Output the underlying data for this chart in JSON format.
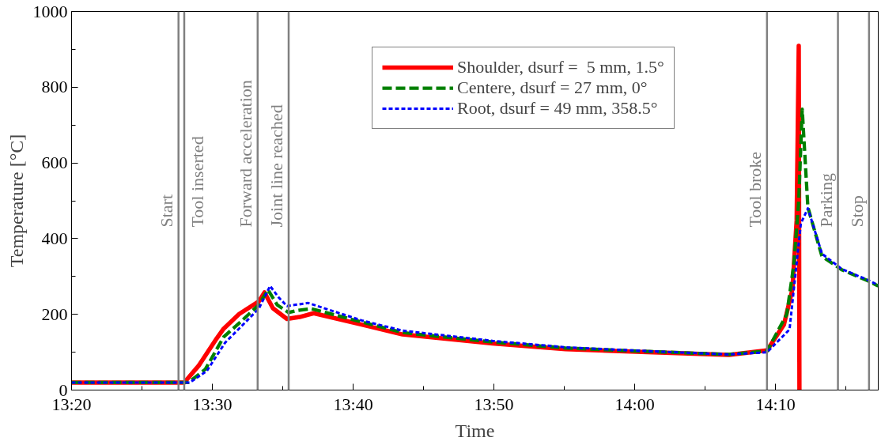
{
  "chart_data": {
    "type": "line",
    "xlabel": "Time",
    "ylabel": "Temperature [°C]",
    "xlim": [
      13.3333,
      14.2883
    ],
    "ylim": [
      0,
      1000
    ],
    "xticks": [
      {
        "value": 13.3333,
        "label": "13:20"
      },
      {
        "value": 13.4167,
        "label": null
      },
      {
        "value": 13.5,
        "label": "13:30"
      },
      {
        "value": 13.5833,
        "label": null
      },
      {
        "value": 13.6667,
        "label": "13:40"
      },
      {
        "value": 13.75,
        "label": null
      },
      {
        "value": 13.8333,
        "label": "13:50"
      },
      {
        "value": 13.9167,
        "label": null
      },
      {
        "value": 14.0,
        "label": "14:00"
      },
      {
        "value": 14.0833,
        "label": null
      },
      {
        "value": 14.1667,
        "label": "14:10"
      },
      {
        "value": 14.25,
        "label": null
      }
    ],
    "yticks": [
      0,
      {
        "value": 100,
        "label": null
      },
      200,
      {
        "value": 300,
        "label": null
      },
      400,
      {
        "value": 500,
        "label": null
      },
      600,
      {
        "value": 700,
        "label": null
      },
      800,
      {
        "value": 900,
        "label": null
      },
      1000
    ],
    "grid": false,
    "legend": "top right",
    "series": [
      {
        "name": "Shoulder, dsurf =  5 mm, 1.5°",
        "color": "#ff0000",
        "line_style": "solid",
        "x": [
          13.3333,
          13.4667,
          13.484,
          13.505,
          13.5133,
          13.5317,
          13.555,
          13.5617,
          13.5717,
          13.5883,
          13.6033,
          13.62,
          13.6767,
          13.725,
          13.8317,
          13.9183,
          14.015,
          14.1117,
          14.1567,
          14.1767,
          14.1867,
          14.1917,
          14.1942,
          14.195
        ],
        "values": [
          20,
          20,
          65,
          136,
          162,
          201,
          234,
          258,
          216,
          188,
          193,
          203,
          173,
          147,
          123,
          108,
          100,
          93,
          105,
          173,
          266,
          448,
          909,
          0
        ]
      },
      {
        "name": "Centere, dsurf = 27 mm, 0°",
        "color": "#008000",
        "line_style": "dashed",
        "x": [
          13.3333,
          13.4717,
          13.4917,
          13.5133,
          13.5333,
          13.555,
          13.5658,
          13.5767,
          13.59,
          13.6,
          13.6167,
          13.6767,
          13.725,
          13.8317,
          13.9183,
          14.015,
          14.1117,
          14.1567,
          14.18,
          14.1883,
          14.1942,
          14.1983,
          14.205,
          14.2217,
          14.245,
          14.2767,
          14.2883
        ],
        "values": [
          20,
          20,
          55,
          140,
          180,
          225,
          265,
          225,
          205,
          210,
          215,
          180,
          152,
          127,
          111,
          102,
          94,
          103,
          200,
          330,
          500,
          742,
          483,
          353,
          318,
          288,
          275
        ]
      },
      {
        "name": "Root, dsurf = 49 mm, 358.5°",
        "color": "#0000ff",
        "line_style": "dotted",
        "x": [
          13.3333,
          13.4733,
          13.4933,
          13.515,
          13.535,
          13.555,
          13.5683,
          13.5783,
          13.5883,
          13.6133,
          13.6767,
          13.725,
          13.8317,
          13.9183,
          14.015,
          14.1117,
          14.1567,
          14.1833,
          14.19,
          14.1967,
          14.205,
          14.2217,
          14.245,
          14.2767,
          14.2883
        ],
        "values": [
          20,
          20,
          50,
          125,
          170,
          215,
          275,
          245,
          222,
          230,
          184,
          157,
          130,
          113,
          103,
          94,
          100,
          160,
          300,
          440,
          480,
          360,
          320,
          290,
          277
        ]
      }
    ],
    "ref_lines": [
      {
        "axis": "x",
        "value": 13.4599,
        "label": "Start",
        "color": "#808080"
      },
      {
        "axis": "x",
        "value": 13.4667,
        "label": "Tool inserted",
        "color": "#808080"
      },
      {
        "axis": "x",
        "value": 13.5536,
        "label": "Forward acceleration",
        "color": "#808080"
      },
      {
        "axis": "x",
        "value": 13.5903,
        "label": "Joint line reached",
        "color": "#808080"
      },
      {
        "axis": "x",
        "value": 14.1566,
        "label": "Tool broke",
        "color": "#808080"
      },
      {
        "axis": "x",
        "value": 14.2406,
        "label": "Parking",
        "color": "#808080"
      },
      {
        "axis": "x",
        "value": 14.2774,
        "label": "Stop",
        "color": "#808080"
      }
    ]
  }
}
